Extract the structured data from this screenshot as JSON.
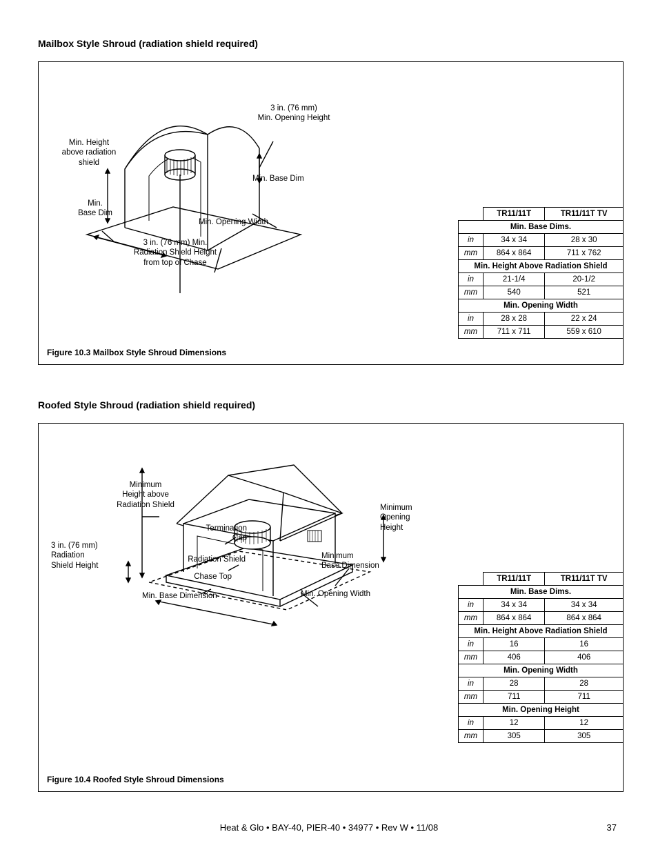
{
  "section1": {
    "title": "Mailbox Style Shroud (radiation shield required)",
    "caption": "Figure 10.3  Mailbox Style Shroud Dimensions",
    "labels": {
      "opening_height": "3 in. (76 mm)\nMin. Opening Height",
      "min_height_above": "Min. Height\nabove radiation\nshield",
      "min_base_dim_right": "Min. Base Dim",
      "min_base_dim_left": "Min.\nBase Dim",
      "min_opening_width": "Min. Opening Width",
      "rad_shield": "3 in. (76 mm) Min.\nRadiation Shield Height\nfrom top of Chase"
    },
    "table": {
      "col1": "TR11/11T",
      "col2": "TR11/11T TV",
      "r1": "Min. Base Dims.",
      "r1_in": [
        "in",
        "34 x 34",
        "28 x 30"
      ],
      "r1_mm": [
        "mm",
        "864 x 864",
        "711 x 762"
      ],
      "r2": "Min. Height Above Radiation Shield",
      "r2_in": [
        "in",
        "21-1/4",
        "20-1/2"
      ],
      "r2_mm": [
        "mm",
        "540",
        "521"
      ],
      "r3": "Min. Opening Width",
      "r3_in": [
        "in",
        "28 x 28",
        "22 x 24"
      ],
      "r3_mm": [
        "mm",
        "711 x 711",
        "559 x 610"
      ]
    }
  },
  "section2": {
    "title": "Roofed Style Shroud (radiation shield required)",
    "caption": "Figure 10.4  Roofed Style Shroud Dimensions",
    "labels": {
      "min_height_above": "Minimum\nHeight above\nRadiation Shield",
      "term_cap": "Termination\nCap",
      "rad_shield_lbl": "Radiation Shield",
      "chase_top": "Chase Top",
      "min_base_dim_bottom": "Min. Base Dimension",
      "rad_shield_height": "3 in. (76 mm)\nRadiation\nShield Height",
      "min_opening_height": "Minimum\nOpening\nHeight",
      "min_base_dim_right": "Minimum\nBase Dimension",
      "min_opening_width": "Min. Opening Width"
    },
    "table": {
      "col1": "TR11/11T",
      "col2": "TR11/11T TV",
      "r1": "Min. Base Dims.",
      "r1_in": [
        "in",
        "34 x 34",
        "34 x 34"
      ],
      "r1_mm": [
        "mm",
        "864 x 864",
        "864 x 864"
      ],
      "r2": "Min. Height Above Radiation Shield",
      "r2_in": [
        "in",
        "16",
        "16"
      ],
      "r2_mm": [
        "mm",
        "406",
        "406"
      ],
      "r3": "Min. Opening Width",
      "r3_in": [
        "in",
        "28",
        "28"
      ],
      "r3_mm": [
        "mm",
        "711",
        "711"
      ],
      "r4": "Min. Opening Height",
      "r4_in": [
        "in",
        "12",
        "12"
      ],
      "r4_mm": [
        "mm",
        "305",
        "305"
      ]
    }
  },
  "footer": "Heat & Glo • BAY-40, PIER-40 • 34977 • Rev W • 11/08",
  "page": "37"
}
